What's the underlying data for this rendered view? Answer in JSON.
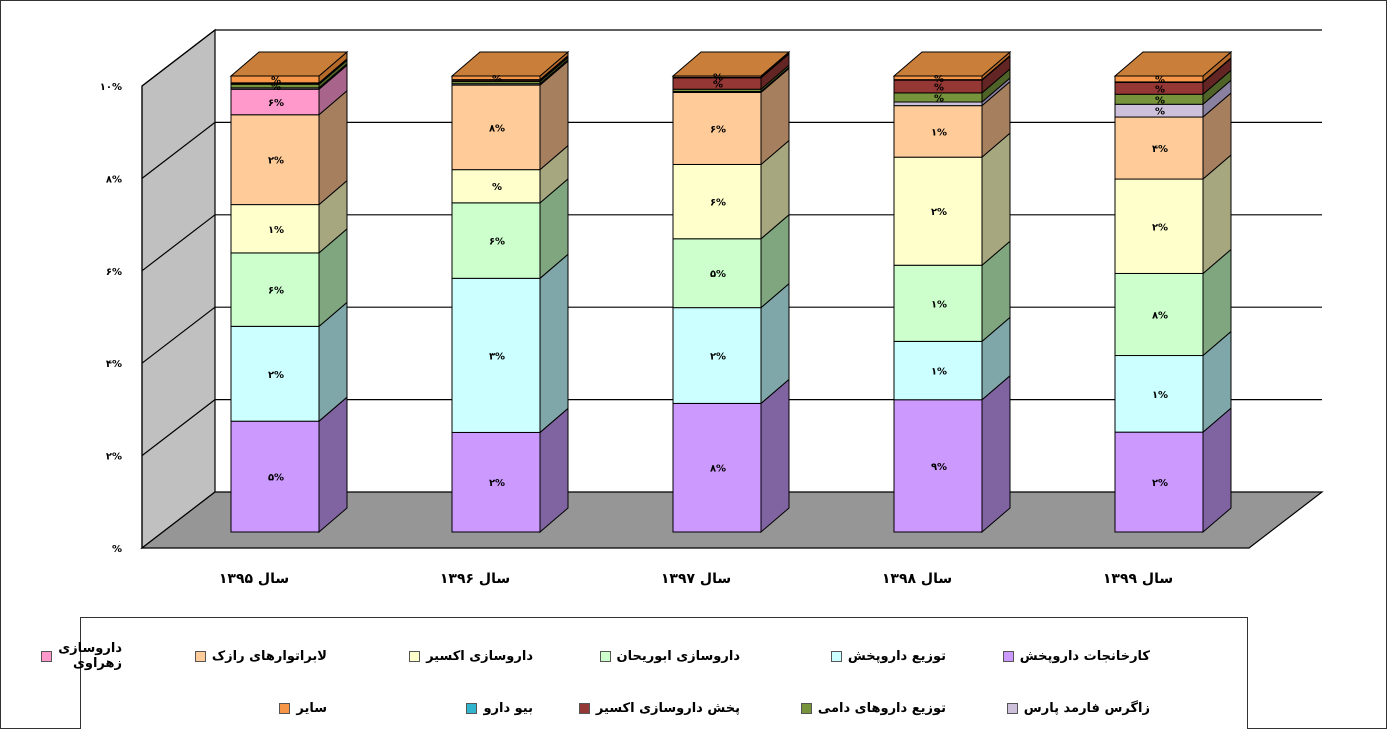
{
  "chart_data": {
    "type": "bar",
    "stacked": true,
    "percent_stacked": true,
    "three_d": true,
    "categories": [
      "سال ۱۳۹۵",
      "سال ۱۳۹۶",
      "سال ۱۳۹۷",
      "سال ۱۳۹۸",
      "سال ۱۳۹۹"
    ],
    "y_ticks": [
      "%",
      "۲%",
      "۴%",
      "۶%",
      "۸%",
      "۱۰%"
    ],
    "ylim": [
      0,
      100
    ],
    "grid": true,
    "legend_position": "bottom",
    "series": [
      {
        "name": "کارخانجات داروپخش",
        "color": "#CC99FF",
        "side": "#8064A2",
        "values": [
          24.3,
          21.9,
          28.2,
          29.0,
          21.9
        ],
        "labels": [
          "۵%",
          "۲%",
          "۸%",
          "۹%",
          "۲%"
        ]
      },
      {
        "name": "توزیع داروپخش",
        "color": "#CCFFFF",
        "side": "#7FA6A8",
        "values": [
          20.8,
          33.9,
          21.0,
          12.8,
          16.8
        ],
        "labels": [
          "۲%",
          "۳%",
          "۲%",
          "۱%",
          "۱%"
        ]
      },
      {
        "name": "داروسازی ابوریحان",
        "color": "#CCFFCC",
        "side": "#7FA67F",
        "values": [
          16.1,
          16.6,
          15.1,
          16.7,
          18.0
        ],
        "labels": [
          "۶%",
          "۶%",
          "۵%",
          "۱%",
          "۸%"
        ]
      },
      {
        "name": "داروسازی اکسیر",
        "color": "#FFFFCC",
        "side": "#A6A67F",
        "values": [
          10.6,
          7.3,
          16.3,
          23.7,
          20.7
        ],
        "labels": [
          "۱%",
          "%",
          "۶%",
          "۲%",
          "۲%"
        ]
      },
      {
        "name": "لابراتوارهای رازک",
        "color": "#FFCC99",
        "side": "#A67F5F",
        "values": [
          19.7,
          18.6,
          15.8,
          11.3,
          13.6
        ],
        "labels": [
          "۲%",
          "۸%",
          "۶%",
          "۱%",
          "۴%"
        ]
      },
      {
        "name": "داروسازی زهراوی",
        "color": "#FF99CC",
        "side": "#A8648A",
        "values": [
          5.6,
          0,
          0,
          0,
          0
        ],
        "labels": [
          "۶%",
          "",
          "",
          "",
          ""
        ]
      },
      {
        "name": "زاگرس فارمد پارس",
        "color": "#CCC0DA",
        "side": "#8A80A0",
        "values": [
          0.3,
          0.3,
          0.2,
          0.8,
          2.8
        ],
        "labels": [
          "",
          "",
          "",
          "",
          "%"
        ]
      },
      {
        "name": "توزیع داروهای دامی",
        "color": "#77933C",
        "side": "#4F6228",
        "values": [
          0.8,
          0.5,
          0.5,
          2.0,
          2.2
        ],
        "labels": [
          "%",
          "",
          "",
          "%",
          "%"
        ]
      },
      {
        "name": "پخش داروسازی اکسیر",
        "color": "#953735",
        "side": "#632523",
        "values": [
          0.2,
          0.3,
          2.5,
          2.8,
          2.6
        ],
        "labels": [
          "",
          "",
          "%",
          "%",
          "%"
        ]
      },
      {
        "name": "بیو دارو",
        "color": "#31B5CE",
        "side": "#2080A0",
        "values": [
          0.1,
          0.1,
          0.1,
          0.1,
          0.1
        ],
        "labels": [
          "",
          "",
          "",
          "",
          ""
        ]
      },
      {
        "name": "سایر",
        "color": "#F79646",
        "side": "#B56A2A",
        "values": [
          1.5,
          0.8,
          0.3,
          0.8,
          1.3
        ],
        "labels": [
          "%",
          "%",
          "%",
          "%",
          "%"
        ]
      }
    ]
  }
}
